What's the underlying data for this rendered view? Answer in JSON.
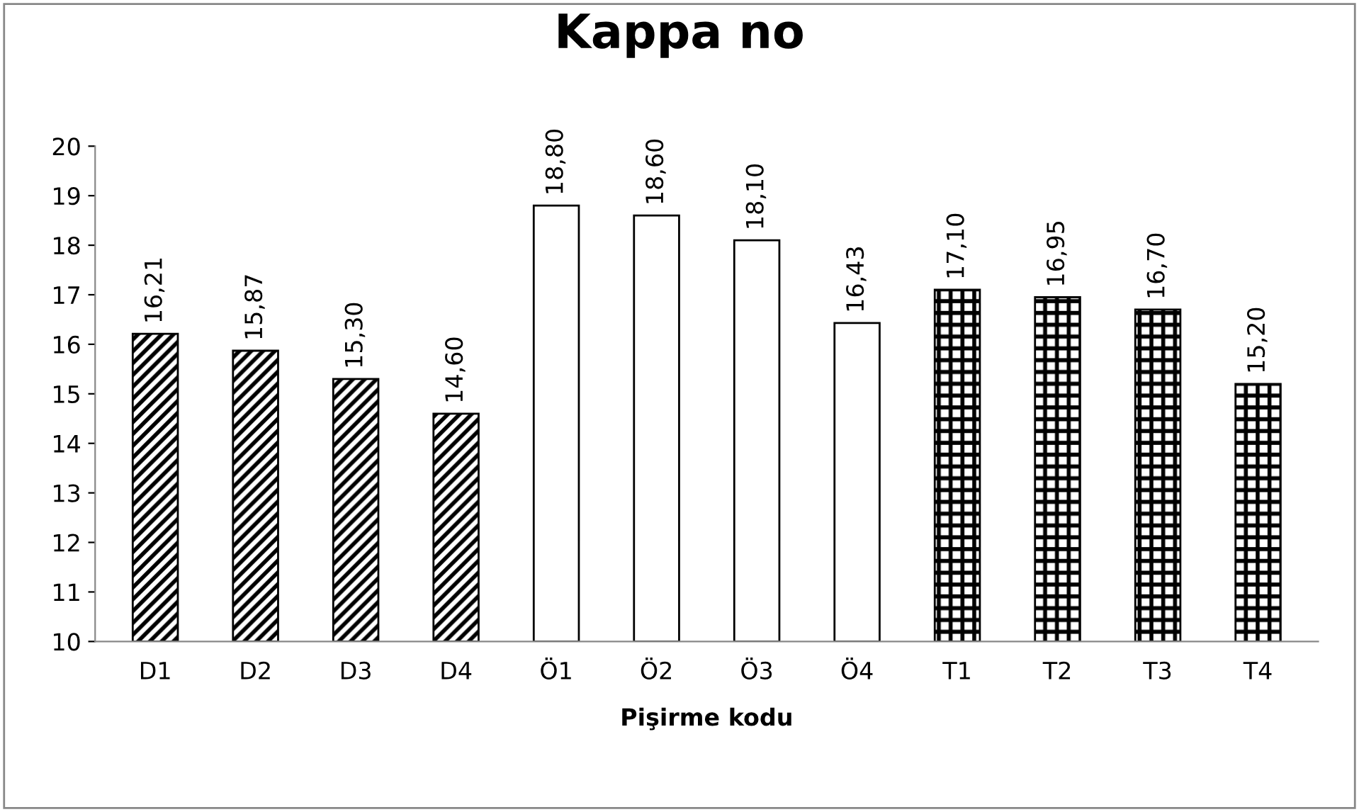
{
  "chart_data": {
    "type": "bar",
    "title": "Kappa no",
    "xlabel": "Pişirme kodu",
    "categories": [
      "D1",
      "D2",
      "D3",
      "D4",
      "Ö1",
      "Ö2",
      "Ö3",
      "Ö4",
      "T1",
      "T2",
      "T3",
      "T4"
    ],
    "values": [
      16.21,
      15.87,
      15.3,
      14.6,
      18.8,
      18.6,
      18.1,
      16.43,
      17.1,
      16.95,
      16.7,
      15.2
    ],
    "value_labels": [
      "16,21",
      "15,87",
      "15,30",
      "14,60",
      "18,80",
      "18,60",
      "18,10",
      "16,43",
      "17,10",
      "16,95",
      "16,70",
      "15,20"
    ],
    "colors": [
      "#000000",
      "#000000",
      "#000000",
      "#000000",
      "#ffffff",
      "#ffffff",
      "#ffffff",
      "#ffffff",
      "#000000",
      "#000000",
      "#000000",
      "#000000"
    ],
    "ylim": [
      10,
      20
    ],
    "yticks": [
      10,
      11,
      12,
      13,
      14,
      15,
      16,
      17,
      18,
      19,
      20
    ],
    "grid": false,
    "legend": false
  }
}
